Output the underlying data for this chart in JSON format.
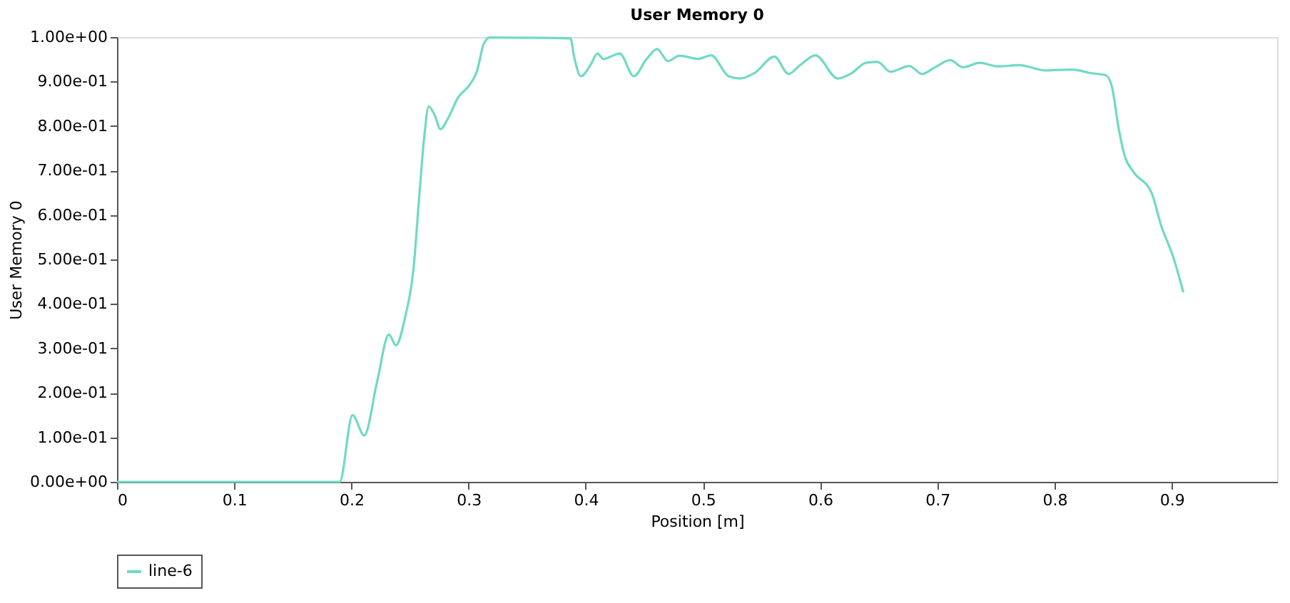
{
  "chart_data": {
    "type": "line",
    "title": "User Memory 0",
    "xlabel": "Position [m]",
    "ylabel": "User Memory 0",
    "xlim": [
      0,
      0.99
    ],
    "xticks": [
      0,
      0.1,
      0.2,
      0.3,
      0.4,
      0.5,
      0.6,
      0.7,
      0.8,
      0.9
    ],
    "ylim": [
      0,
      1
    ],
    "yticks": [
      {
        "value": 0,
        "label": "0.00e+00"
      },
      {
        "value": 0.1,
        "label": "1.00e-01"
      },
      {
        "value": 0.2,
        "label": "2.00e-01"
      },
      {
        "value": 0.3,
        "label": "3.00e-01"
      },
      {
        "value": 0.4,
        "label": "4.00e-01"
      },
      {
        "value": 0.5,
        "label": "5.00e-01"
      },
      {
        "value": 0.6,
        "label": "6.00e-01"
      },
      {
        "value": 0.7,
        "label": "7.00e-01"
      },
      {
        "value": 0.8,
        "label": "8.00e-01"
      },
      {
        "value": 0.9,
        "label": "9.00e-01"
      },
      {
        "value": 1,
        "label": "1.00e+00"
      }
    ],
    "grid": false,
    "legend": "bottom",
    "marker": "none",
    "line_style": "solid",
    "series": [
      {
        "name": "line-6",
        "color": "#6fdac4",
        "x": [
          0,
          0.19,
          0.201,
          0.211,
          0.222,
          0.232,
          0.238,
          0.246,
          0.253,
          0.258,
          0.262,
          0.266,
          0.271,
          0.276,
          0.283,
          0.291,
          0.301,
          0.307,
          0.313,
          0.318,
          0.387,
          0.39,
          0.396,
          0.404,
          0.41,
          0.415,
          0.429,
          0.441,
          0.452,
          0.461,
          0.47,
          0.48,
          0.496,
          0.507,
          0.522,
          0.532,
          0.544,
          0.561,
          0.573,
          0.583,
          0.596,
          0.615,
          0.627,
          0.639,
          0.649,
          0.66,
          0.676,
          0.687,
          0.698,
          0.711,
          0.722,
          0.736,
          0.752,
          0.77,
          0.792,
          0.815,
          0.831,
          0.844,
          0.849,
          0.855,
          0.86,
          0.867,
          0.883,
          0.891,
          0.901,
          0.91
        ],
        "values": [
          0,
          0,
          0.15,
          0.104,
          0.226,
          0.331,
          0.307,
          0.372,
          0.479,
          0.645,
          0.771,
          0.844,
          0.825,
          0.793,
          0.82,
          0.864,
          0.893,
          0.922,
          0.985,
          0.999,
          0.997,
          0.956,
          0.912,
          0.937,
          0.963,
          0.951,
          0.963,
          0.912,
          0.951,
          0.973,
          0.946,
          0.958,
          0.951,
          0.959,
          0.912,
          0.907,
          0.919,
          0.956,
          0.917,
          0.937,
          0.959,
          0.907,
          0.919,
          0.942,
          0.944,
          0.922,
          0.935,
          0.917,
          0.932,
          0.948,
          0.932,
          0.942,
          0.934,
          0.937,
          0.925,
          0.927,
          0.919,
          0.914,
          0.888,
          0.791,
          0.732,
          0.698,
          0.649,
          0.576,
          0.508,
          0.426
        ]
      }
    ]
  }
}
